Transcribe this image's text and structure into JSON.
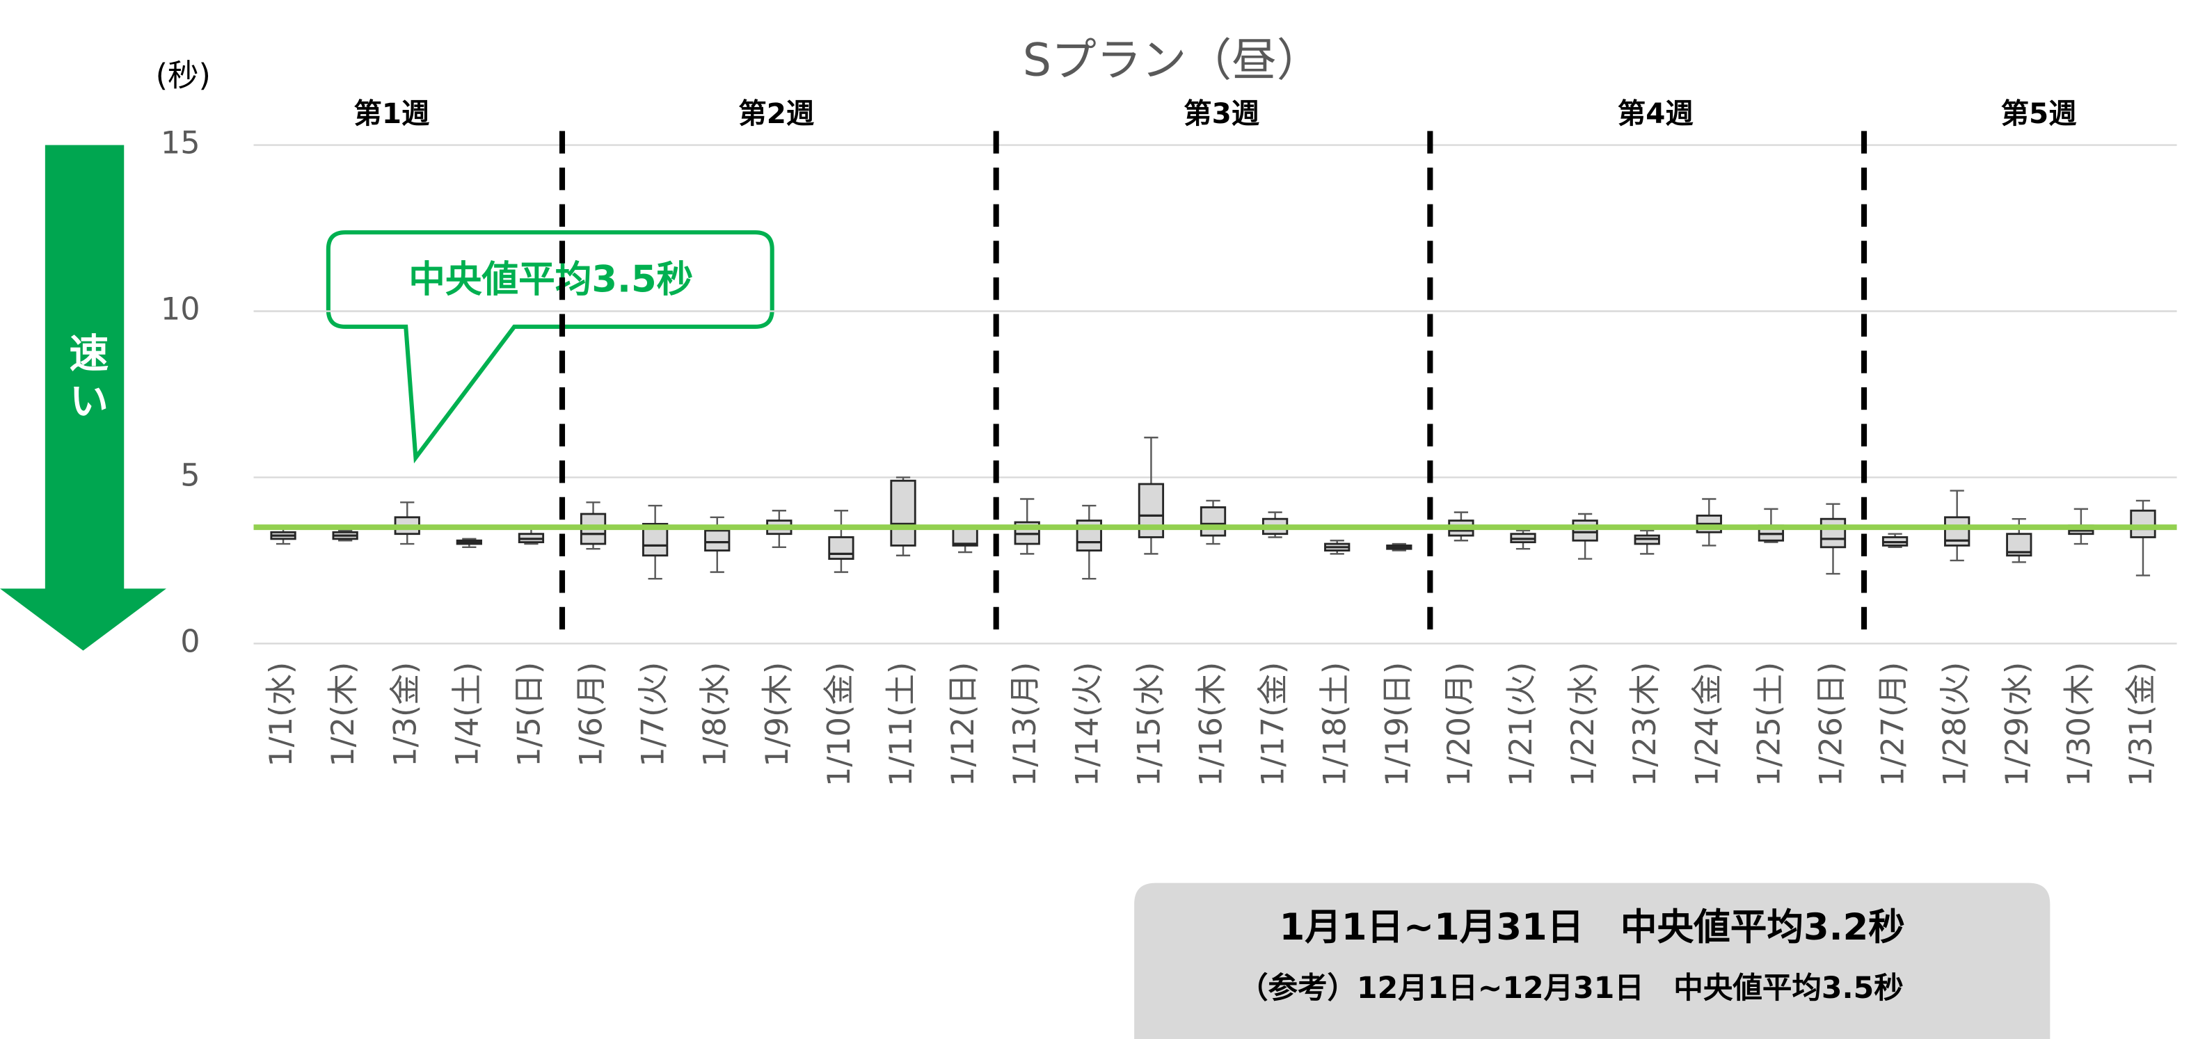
{
  "chart_data": {
    "type": "box",
    "title": "Sプラン（昼）",
    "y_label": "(秒)",
    "arrow_label": "速い",
    "callout": "中央値平均3.5秒",
    "summary": [
      "1月1日~1月31日　中央値平均3.2秒",
      "（参考）12月1日~12月31日　中央値平均3.5秒"
    ],
    "weeks": [
      "第1週",
      "第2週",
      "第3週",
      "第4週",
      "第5週"
    ],
    "categories": [
      "1/1(水)",
      "1/2(木)",
      "1/3(金)",
      "1/4(土)",
      "1/5(日)",
      "1/6(月)",
      "1/7(火)",
      "1/8(水)",
      "1/9(木)",
      "1/10(金)",
      "1/11(土)",
      "1/12(日)",
      "1/13(月)",
      "1/14(火)",
      "1/15(水)",
      "1/16(木)",
      "1/17(金)",
      "1/18(土)",
      "1/19(日)",
      "1/20(月)",
      "1/21(火)",
      "1/22(水)",
      "1/23(木)",
      "1/24(金)",
      "1/25(土)",
      "1/26(日)",
      "1/27(月)",
      "1/28(火)",
      "1/29(水)",
      "1/30(木)",
      "1/31(金)"
    ],
    "boxes": [
      {
        "min": 3.0,
        "q1": 3.15,
        "median": 3.25,
        "q3": 3.35,
        "max": 3.45
      },
      {
        "min": 3.1,
        "q1": 3.15,
        "median": 3.25,
        "q3": 3.35,
        "max": 3.4
      },
      {
        "min": 3.0,
        "q1": 3.3,
        "median": 3.5,
        "q3": 3.8,
        "max": 4.25
      },
      {
        "min": 2.9,
        "q1": 3.0,
        "median": 3.05,
        "q3": 3.1,
        "max": 3.15
      },
      {
        "min": 3.0,
        "q1": 3.05,
        "median": 3.15,
        "q3": 3.3,
        "max": 3.45
      },
      {
        "min": 2.85,
        "q1": 3.0,
        "median": 3.3,
        "q3": 3.9,
        "max": 4.25
      },
      {
        "min": 1.95,
        "q1": 2.65,
        "median": 2.95,
        "q3": 3.6,
        "max": 4.15
      },
      {
        "min": 2.15,
        "q1": 2.8,
        "median": 3.05,
        "q3": 3.4,
        "max": 3.8
      },
      {
        "min": 2.9,
        "q1": 3.3,
        "median": 3.45,
        "q3": 3.7,
        "max": 4.0
      },
      {
        "min": 2.15,
        "q1": 2.55,
        "median": 2.7,
        "q3": 3.2,
        "max": 4.0
      },
      {
        "min": 2.65,
        "q1": 2.95,
        "median": 3.6,
        "q3": 4.9,
        "max": 5.0
      },
      {
        "min": 2.75,
        "q1": 2.95,
        "median": 3.0,
        "q3": 3.45,
        "max": 3.5
      },
      {
        "min": 2.7,
        "q1": 3.0,
        "median": 3.3,
        "q3": 3.65,
        "max": 4.35
      },
      {
        "min": 1.95,
        "q1": 2.8,
        "median": 3.05,
        "q3": 3.7,
        "max": 4.15
      },
      {
        "min": 2.7,
        "q1": 3.2,
        "median": 3.85,
        "q3": 4.8,
        "max": 6.2
      },
      {
        "min": 3.0,
        "q1": 3.25,
        "median": 3.6,
        "q3": 4.1,
        "max": 4.3
      },
      {
        "min": 3.2,
        "q1": 3.3,
        "median": 3.5,
        "q3": 3.75,
        "max": 3.95
      },
      {
        "min": 2.7,
        "q1": 2.8,
        "median": 2.9,
        "q3": 3.0,
        "max": 3.1
      },
      {
        "min": 2.8,
        "q1": 2.85,
        "median": 2.9,
        "q3": 2.95,
        "max": 3.0
      },
      {
        "min": 3.1,
        "q1": 3.25,
        "median": 3.4,
        "q3": 3.7,
        "max": 3.95
      },
      {
        "min": 2.85,
        "q1": 3.05,
        "median": 3.15,
        "q3": 3.3,
        "max": 3.4
      },
      {
        "min": 2.55,
        "q1": 3.1,
        "median": 3.35,
        "q3": 3.7,
        "max": 3.9
      },
      {
        "min": 2.7,
        "q1": 3.0,
        "median": 3.15,
        "q3": 3.25,
        "max": 3.4
      },
      {
        "min": 2.95,
        "q1": 3.35,
        "median": 3.6,
        "q3": 3.85,
        "max": 4.35
      },
      {
        "min": 3.05,
        "q1": 3.1,
        "median": 3.3,
        "q3": 3.55,
        "max": 4.05
      },
      {
        "min": 2.1,
        "q1": 2.9,
        "median": 3.15,
        "q3": 3.75,
        "max": 4.2
      },
      {
        "min": 2.9,
        "q1": 2.95,
        "median": 3.05,
        "q3": 3.2,
        "max": 3.3
      },
      {
        "min": 2.5,
        "q1": 2.95,
        "median": 3.1,
        "q3": 3.8,
        "max": 4.6
      },
      {
        "min": 2.45,
        "q1": 2.65,
        "median": 2.75,
        "q3": 3.3,
        "max": 3.75
      },
      {
        "min": 3.0,
        "q1": 3.3,
        "median": 3.4,
        "q3": 3.55,
        "max": 4.05
      },
      {
        "min": 2.05,
        "q1": 3.2,
        "median": 3.45,
        "q3": 4.0,
        "max": 4.3
      }
    ],
    "box_color": "#d9d9d9",
    "reference_line": {
      "value": 3.5,
      "color": "#92d050"
    },
    "ylim": [
      0,
      15
    ],
    "yticks": [
      0,
      5,
      10,
      15
    ],
    "grid": true
  }
}
